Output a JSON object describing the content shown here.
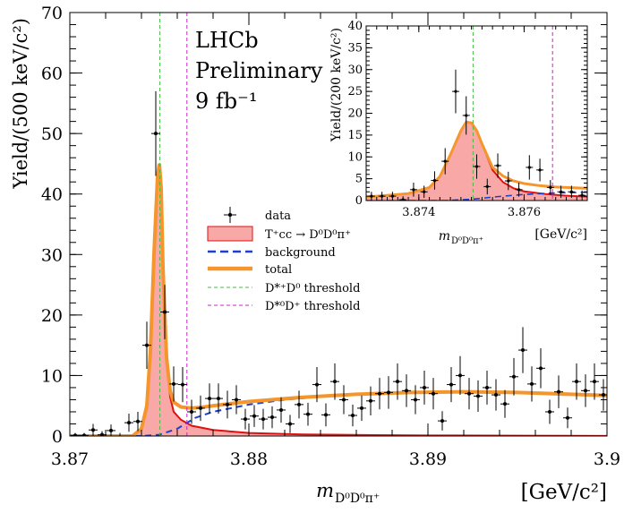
{
  "chart_data": [
    {
      "type": "scatter",
      "x_unit": "GeV/c^2",
      "xlim": [
        3.87,
        3.9
      ],
      "ylim": [
        0,
        70
      ],
      "x_ticks": [
        "3.87",
        "3.88",
        "3.89",
        "3.9"
      ],
      "y_ticks": [
        "0",
        "10",
        "20",
        "30",
        "40",
        "50",
        "60",
        "70"
      ],
      "xlabel": {
        "main": "m",
        "sub": "D⁰D⁰π⁺",
        "unit": "[GeV/c²]"
      },
      "ylabel": "Yield/(500 keV/c²)",
      "annotations": [
        "LHCb",
        "Preliminary",
        "9 fb⁻¹"
      ],
      "legend": {
        "placement": "center-right",
        "entries": [
          {
            "label": "data",
            "style": "marker"
          },
          {
            "label": "T⁺cc → D⁰D⁰π⁺",
            "style": "fill"
          },
          {
            "label": "background",
            "style": "dashed"
          },
          {
            "label": "total",
            "style": "thick"
          },
          {
            "label": "D*⁺D⁰ threshold",
            "style": "thin-dashed"
          },
          {
            "label": "D*⁰D⁺ threshold",
            "style": "thin-dashed"
          }
        ]
      },
      "thresholds": [
        3.87503,
        3.87654
      ],
      "data_points": [
        [
          3.8703,
          0.1,
          0.4
        ],
        [
          3.8708,
          0.1,
          0.4
        ],
        [
          3.8713,
          1.0,
          1.0
        ],
        [
          3.8718,
          0.2,
          0.6
        ],
        [
          3.8723,
          0.9,
          1.0
        ],
        [
          3.8728,
          -0.3,
          0.8
        ],
        [
          3.8733,
          2.2,
          1.5
        ],
        [
          3.8738,
          2.4,
          1.6
        ],
        [
          3.8743,
          15.0,
          3.9
        ],
        [
          3.8748,
          50.0,
          7.0
        ],
        [
          3.8753,
          20.5,
          4.5
        ],
        [
          3.8758,
          8.6,
          2.9
        ],
        [
          3.8763,
          8.5,
          2.9
        ],
        [
          3.8768,
          4.0,
          2.0
        ],
        [
          3.8773,
          4.6,
          2.1
        ],
        [
          3.8778,
          6.2,
          2.5
        ],
        [
          3.8783,
          6.2,
          2.5
        ],
        [
          3.8788,
          5.2,
          2.3
        ],
        [
          3.8793,
          6.0,
          2.4
        ],
        [
          3.8798,
          2.8,
          1.7
        ],
        [
          3.8803,
          3.3,
          1.8
        ],
        [
          3.8808,
          2.8,
          1.7
        ],
        [
          3.8813,
          3.1,
          1.8
        ],
        [
          3.8818,
          4.3,
          2.1
        ],
        [
          3.8823,
          2.0,
          1.5
        ],
        [
          3.8828,
          5.2,
          2.3
        ],
        [
          3.8833,
          3.6,
          1.9
        ],
        [
          3.8838,
          8.5,
          2.9
        ],
        [
          3.8843,
          3.5,
          1.9
        ],
        [
          3.8848,
          9.0,
          3.0
        ],
        [
          3.8853,
          6.0,
          2.4
        ],
        [
          3.8858,
          3.4,
          1.8
        ],
        [
          3.8863,
          4.6,
          2.1
        ],
        [
          3.8868,
          5.8,
          2.4
        ],
        [
          3.8873,
          7.0,
          2.6
        ],
        [
          3.8878,
          7.2,
          2.7
        ],
        [
          3.8883,
          9.0,
          3.0
        ],
        [
          3.8888,
          7.5,
          2.7
        ],
        [
          3.8893,
          6.0,
          2.4
        ],
        [
          3.8898,
          8.0,
          2.8
        ],
        [
          3.8903,
          7.0,
          2.6
        ],
        [
          3.8908,
          2.5,
          1.6
        ],
        [
          3.8913,
          8.5,
          2.9
        ],
        [
          3.8918,
          10.0,
          3.2
        ],
        [
          3.8923,
          7.0,
          2.6
        ],
        [
          3.8928,
          6.6,
          2.6
        ],
        [
          3.8933,
          8.0,
          2.8
        ],
        [
          3.8938,
          6.8,
          2.6
        ],
        [
          3.8943,
          5.3,
          2.3
        ],
        [
          3.8948,
          9.8,
          3.1
        ],
        [
          3.8953,
          14.2,
          3.8
        ],
        [
          3.8958,
          8.6,
          2.9
        ],
        [
          3.8963,
          11.2,
          3.3
        ],
        [
          3.8968,
          4.0,
          2.0
        ],
        [
          3.8973,
          7.3,
          2.7
        ],
        [
          3.8978,
          3.0,
          1.7
        ],
        [
          3.8983,
          9.0,
          3.0
        ],
        [
          3.8988,
          7.5,
          2.7
        ],
        [
          3.8993,
          9.0,
          3.0
        ],
        [
          3.8998,
          6.8,
          2.6
        ]
      ],
      "signal_curve": [
        [
          3.87,
          0.0
        ],
        [
          3.8735,
          0.0
        ],
        [
          3.874,
          1.2
        ],
        [
          3.8743,
          5.0
        ],
        [
          3.8745,
          14.0
        ],
        [
          3.8747,
          30.0
        ],
        [
          3.8749,
          43.0
        ],
        [
          3.875,
          45.0
        ],
        [
          3.8751,
          41.0
        ],
        [
          3.8752,
          28.0
        ],
        [
          3.8754,
          13.0
        ],
        [
          3.8756,
          6.5
        ],
        [
          3.8758,
          4.0
        ],
        [
          3.8762,
          2.7
        ],
        [
          3.8768,
          1.7
        ],
        [
          3.878,
          1.0
        ],
        [
          3.88,
          0.5
        ],
        [
          3.883,
          0.25
        ],
        [
          3.887,
          0.15
        ],
        [
          3.89,
          0.1
        ],
        [
          3.895,
          0.05
        ],
        [
          3.9,
          0.02
        ]
      ],
      "background_curve": [
        [
          3.87,
          0.0
        ],
        [
          3.874,
          0.0
        ],
        [
          3.875,
          0.2
        ],
        [
          3.876,
          1.2
        ],
        [
          3.877,
          3.0
        ],
        [
          3.878,
          4.0
        ],
        [
          3.879,
          4.6
        ],
        [
          3.88,
          5.2
        ],
        [
          3.882,
          6.0
        ],
        [
          3.885,
          6.7
        ],
        [
          3.888,
          7.1
        ],
        [
          3.891,
          7.2
        ],
        [
          3.894,
          7.2
        ],
        [
          3.897,
          7.0
        ],
        [
          3.9,
          6.7
        ]
      ],
      "total_curve": [
        [
          3.87,
          0.0
        ],
        [
          3.8735,
          0.0
        ],
        [
          3.874,
          1.2
        ],
        [
          3.8743,
          5.0
        ],
        [
          3.8745,
          14.0
        ],
        [
          3.8747,
          30.0
        ],
        [
          3.8749,
          43.0
        ],
        [
          3.875,
          45.0
        ],
        [
          3.8751,
          41.0
        ],
        [
          3.8752,
          28.0
        ],
        [
          3.8754,
          13.0
        ],
        [
          3.8756,
          7.5
        ],
        [
          3.8758,
          5.6
        ],
        [
          3.8762,
          4.8
        ],
        [
          3.8768,
          4.6
        ],
        [
          3.8775,
          4.8
        ],
        [
          3.878,
          5.0
        ],
        [
          3.88,
          5.7
        ],
        [
          3.883,
          6.4
        ],
        [
          3.886,
          6.9
        ],
        [
          3.889,
          7.2
        ],
        [
          3.892,
          7.3
        ],
        [
          3.895,
          7.2
        ],
        [
          3.898,
          6.9
        ],
        [
          3.9,
          6.7
        ]
      ]
    },
    {
      "type": "scatter",
      "role": "inset",
      "x_unit": "GeV/c^2",
      "xlim": [
        3.873,
        3.8772
      ],
      "ylim": [
        0,
        40
      ],
      "x_ticks": [
        "3.874",
        "3.876"
      ],
      "y_ticks": [
        "0",
        "5",
        "10",
        "15",
        "20",
        "25",
        "30",
        "35",
        "40"
      ],
      "xlabel": {
        "main": "m",
        "sub": "D⁰D⁰π⁺",
        "unit": "[GeV/c²]"
      },
      "ylabel": "Yield/(200 keV/c²)",
      "thresholds": [
        3.87503,
        3.87654
      ],
      "data_points": [
        [
          3.8731,
          1.0,
          1.0
        ],
        [
          3.8733,
          1.0,
          1.0
        ],
        [
          3.8735,
          1.0,
          1.0
        ],
        [
          3.8737,
          0.2,
          0.8
        ],
        [
          3.8739,
          2.5,
          1.6
        ],
        [
          3.8741,
          2.0,
          1.4
        ],
        [
          3.8743,
          4.6,
          2.1
        ],
        [
          3.8745,
          9.0,
          3.0
        ],
        [
          3.8747,
          25.0,
          5.0
        ],
        [
          3.8749,
          19.5,
          4.4
        ],
        [
          3.8751,
          7.8,
          2.8
        ],
        [
          3.8753,
          3.2,
          1.8
        ],
        [
          3.8755,
          8.0,
          2.8
        ],
        [
          3.8757,
          4.5,
          2.1
        ],
        [
          3.8759,
          2.5,
          1.6
        ],
        [
          3.8761,
          7.6,
          2.8
        ],
        [
          3.8763,
          7.0,
          2.6
        ],
        [
          3.8765,
          3.0,
          1.7
        ],
        [
          3.8767,
          2.0,
          1.4
        ],
        [
          3.8769,
          2.0,
          1.4
        ],
        [
          3.8771,
          1.2,
          1.1
        ]
      ],
      "signal_curve": [
        [
          3.873,
          0.8
        ],
        [
          3.8738,
          1.6
        ],
        [
          3.8742,
          3.0
        ],
        [
          3.8744,
          5.5
        ],
        [
          3.8746,
          10.5
        ],
        [
          3.8748,
          16.0
        ],
        [
          3.8749,
          18.0
        ],
        [
          3.875,
          17.8
        ],
        [
          3.8751,
          16.0
        ],
        [
          3.8752,
          13.0
        ],
        [
          3.8754,
          7.0
        ],
        [
          3.8756,
          4.2
        ],
        [
          3.8758,
          2.8
        ],
        [
          3.876,
          2.1
        ],
        [
          3.8764,
          1.5
        ],
        [
          3.8768,
          1.1
        ],
        [
          3.8772,
          0.9
        ]
      ],
      "total_curve": [
        [
          3.873,
          0.8
        ],
        [
          3.8738,
          1.6
        ],
        [
          3.8742,
          3.0
        ],
        [
          3.8744,
          5.5
        ],
        [
          3.8746,
          10.5
        ],
        [
          3.8748,
          16.0
        ],
        [
          3.8749,
          18.0
        ],
        [
          3.875,
          17.8
        ],
        [
          3.8751,
          16.0
        ],
        [
          3.8752,
          13.0
        ],
        [
          3.8754,
          7.6
        ],
        [
          3.8756,
          5.6
        ],
        [
          3.8758,
          4.5
        ],
        [
          3.876,
          3.9
        ],
        [
          3.8763,
          3.4
        ],
        [
          3.8766,
          3.1
        ],
        [
          3.8768,
          3.0
        ],
        [
          3.8772,
          2.8
        ]
      ],
      "background_curve": [
        [
          3.873,
          0.0
        ],
        [
          3.8745,
          0.0
        ],
        [
          3.875,
          0.3
        ],
        [
          3.8755,
          0.9
        ],
        [
          3.876,
          1.4
        ],
        [
          3.8765,
          1.7
        ],
        [
          3.8772,
          1.9
        ]
      ]
    }
  ]
}
